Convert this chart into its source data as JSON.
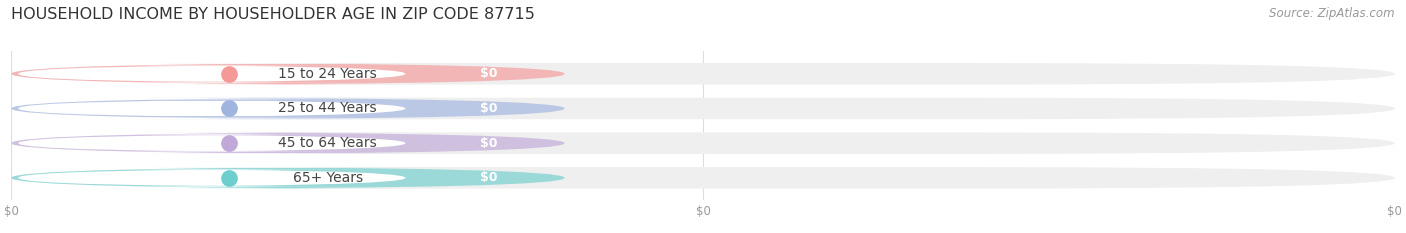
{
  "title": "HOUSEHOLD INCOME BY HOUSEHOLDER AGE IN ZIP CODE 87715",
  "source": "Source: ZipAtlas.com",
  "categories": [
    "15 to 24 Years",
    "25 to 44 Years",
    "45 to 64 Years",
    "65+ Years"
  ],
  "values": [
    0,
    0,
    0,
    0
  ],
  "bar_colors": [
    "#f49898",
    "#a0b4e0",
    "#c0a8d8",
    "#6ecece"
  ],
  "bar_bg_color": "#efefef",
  "label_bg_color": "#ffffff",
  "background_color": "#ffffff",
  "track_alpha": 1.0,
  "bar_alpha": 0.65,
  "title_fontsize": 11.5,
  "source_fontsize": 8.5,
  "label_fontsize": 10,
  "value_fontsize": 9,
  "tick_fontsize": 8.5,
  "tick_color": "#999999",
  "title_color": "#333333",
  "source_color": "#999999",
  "label_color": "#444444",
  "grid_color": "#dddddd",
  "value_label_color": "#ffffff"
}
